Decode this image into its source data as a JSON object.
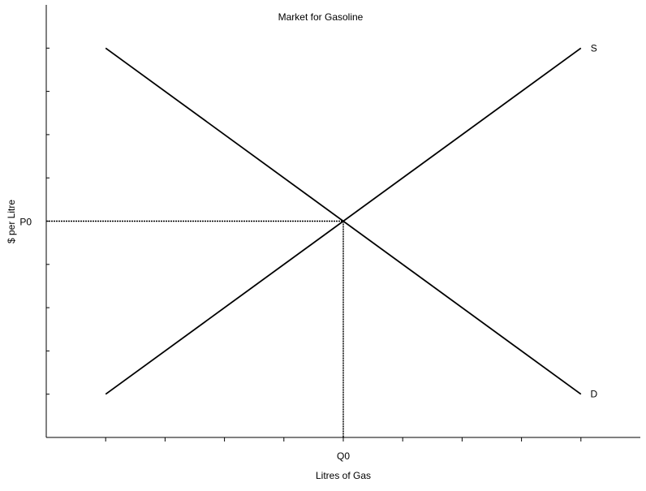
{
  "chart_data": {
    "type": "line",
    "title": "Market for Gasoline",
    "xlabel": "Litres of Gas",
    "ylabel": "$ per Litre",
    "xlim": [
      0,
      10
    ],
    "ylim": [
      0,
      9
    ],
    "x_ticks": [
      1,
      2,
      3,
      4,
      5,
      6,
      7,
      8,
      9
    ],
    "y_ticks": [
      1,
      2,
      3,
      4,
      5,
      6,
      7,
      8,
      9
    ],
    "x_tick_labels": [
      {
        "x": 5,
        "label": "Q0"
      }
    ],
    "y_tick_labels": [
      {
        "y": 5,
        "label": "P0"
      }
    ],
    "series": [
      {
        "name": "S",
        "x": [
          1,
          9
        ],
        "y": [
          1,
          9
        ],
        "color": "#000000"
      },
      {
        "name": "D",
        "x": [
          1,
          9
        ],
        "y": [
          9,
          1
        ],
        "color": "#000000"
      }
    ],
    "equilibrium": {
      "x": 5,
      "y": 5
    },
    "grid": false,
    "axis_color": "#000000",
    "guide_line_style": "dotted"
  }
}
